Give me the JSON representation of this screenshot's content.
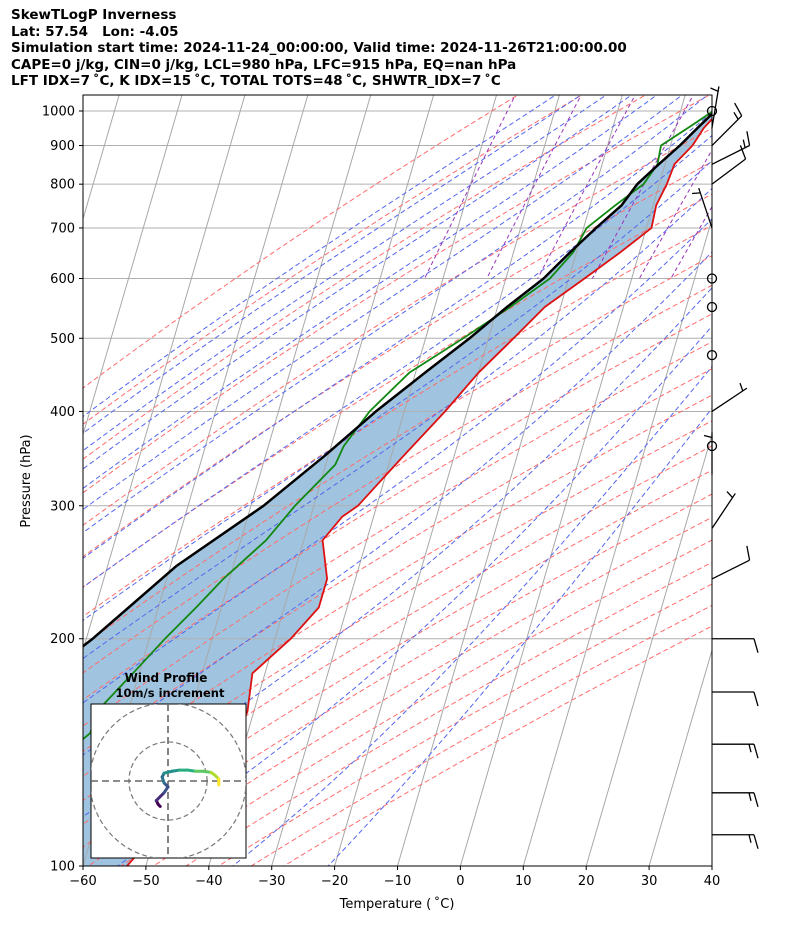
{
  "header": {
    "lines": [
      "SkewTLogP Inverness",
      "Lat: 57.54   Lon: -4.05",
      "Simulation start time: 2024-11-24_00:00:00, Valid time: 2024-11-26T21:00:00.00",
      "CAPE=0 j/kg, CIN=0 j/kg, LCL=980 hPa, LFC=915 hPa, EQ=nan hPa",
      "LFT IDX=7 ˚C, K IDX=15 ˚C, TOTAL TOTS=48 ˚C, SHWTR_IDX=7 ˚C"
    ]
  },
  "chart_data": {
    "type": "skewt-logp",
    "xlabel": "Temperature ( ˚C)",
    "ylabel": "Pressure (hPa)",
    "xlim": [
      -60,
      40
    ],
    "ylim": [
      1050,
      100
    ],
    "x_ticks": [
      -60,
      -50,
      -40,
      -30,
      -20,
      -10,
      0,
      10,
      20,
      30,
      40
    ],
    "x_tick_labels": [
      "−60",
      "−50",
      "−40",
      "−30",
      "−20",
      "−10",
      "0",
      "10",
      "20",
      "30",
      "40"
    ],
    "y_ticks": [
      1000,
      900,
      800,
      700,
      600,
      500,
      400,
      300,
      200,
      100
    ],
    "y_tick_labels": [
      "1000",
      "900",
      "800",
      "700",
      "600",
      "500",
      "400",
      "300",
      "200",
      "100"
    ],
    "isotherm_grid": true,
    "dry_adiabats": "dashed red",
    "moist_adiabats": "dashed blue",
    "mixing_ratio_lines": "dashed purple",
    "cape_shading": "#a0c4df",
    "series": [
      {
        "color": "#dd1111",
        "points": [
          [
            6.2,
            1000
          ],
          [
            4.5,
            950
          ],
          [
            3.5,
            900
          ],
          [
            1.5,
            850
          ],
          [
            1.2,
            800
          ],
          [
            0.5,
            750
          ],
          [
            0.8,
            700
          ],
          [
            -3,
            650
          ],
          [
            -7.5,
            600
          ],
          [
            -12.5,
            550
          ],
          [
            -16,
            500
          ],
          [
            -20,
            450
          ],
          [
            -23.5,
            400
          ],
          [
            -28,
            350
          ],
          [
            -33,
            300
          ],
          [
            -35,
            290
          ],
          [
            -37,
            270
          ],
          [
            -34.5,
            240
          ],
          [
            -34.5,
            220
          ],
          [
            -37.5,
            200
          ],
          [
            -42,
            180
          ],
          [
            -41,
            160
          ],
          [
            -42,
            150
          ],
          [
            -45,
            130
          ],
          [
            -53,
            100
          ]
        ]
      },
      {
        "color": "#118811",
        "points": [
          [
            5.2,
            1000
          ],
          [
            2,
            950
          ],
          [
            -1.5,
            900
          ],
          [
            -1.2,
            850
          ],
          [
            -2.5,
            800
          ],
          [
            -6,
            750
          ],
          [
            -9.5,
            700
          ],
          [
            -10.5,
            650
          ],
          [
            -13,
            600
          ],
          [
            -18,
            550
          ],
          [
            -24,
            500
          ],
          [
            -31,
            450
          ],
          [
            -35.5,
            400
          ],
          [
            -38,
            360
          ],
          [
            -38.5,
            340
          ],
          [
            -43,
            300
          ],
          [
            -46,
            270
          ],
          [
            -51,
            240
          ],
          [
            -54,
            220
          ],
          [
            -57.5,
            200
          ],
          [
            -61,
            180
          ],
          [
            -65,
            160
          ],
          [
            -65,
            150
          ],
          [
            -72,
            130
          ],
          [
            -75.5,
            100
          ]
        ]
      },
      {
        "color": "#000000",
        "points": [
          [
            5.5,
            1000
          ],
          [
            3.5,
            950
          ],
          [
            1.5,
            900
          ],
          [
            -1,
            850
          ],
          [
            -3.5,
            800
          ],
          [
            -5,
            750
          ],
          [
            -8,
            700
          ],
          [
            -11,
            650
          ],
          [
            -14,
            600
          ],
          [
            -18.5,
            550
          ],
          [
            -23,
            500
          ],
          [
            -28.5,
            450
          ],
          [
            -34.5,
            400
          ],
          [
            -40.5,
            350
          ],
          [
            -48,
            300
          ],
          [
            -59,
            250
          ],
          [
            -69,
            200
          ],
          [
            -84,
            150
          ],
          [
            -98,
            100
          ]
        ]
      }
    ],
    "wind_barbs": [
      {
        "p": 1000,
        "calm": true
      },
      {
        "p": 950,
        "u": 0.5,
        "v": 3,
        "full": 0,
        "half": 1
      },
      {
        "p": 900,
        "u": 3,
        "v": 3,
        "full": 1,
        "half": 1
      },
      {
        "p": 850,
        "u": 4,
        "v": 2,
        "full": 1,
        "half": 1
      },
      {
        "p": 800,
        "u": 4,
        "v": 3,
        "full": 1,
        "half": 0
      },
      {
        "p": 700,
        "u": -1,
        "v": 3,
        "full": 0,
        "half": 1
      },
      {
        "p": 600,
        "calm": true
      },
      {
        "p": 550,
        "calm": true
      },
      {
        "p": 475,
        "calm": true
      },
      {
        "p": 400,
        "u": 3,
        "v": 2,
        "full": 0,
        "half": 1
      },
      {
        "p": 360,
        "calm": true
      },
      {
        "p": 330,
        "u": 0,
        "v": 4,
        "full": 0,
        "half": 1
      },
      {
        "p": 280,
        "u": 2,
        "v": 3,
        "full": 0,
        "half": 1
      },
      {
        "p": 240,
        "u": 4,
        "v": 2,
        "full": 1,
        "half": 0
      },
      {
        "p": 200,
        "u": 5,
        "v": 0,
        "full": 1,
        "half": 0
      },
      {
        "p": 170,
        "u": 5,
        "v": 0,
        "full": 1,
        "half": 0
      },
      {
        "p": 145,
        "u": 5,
        "v": 0,
        "full": 1,
        "half": 1
      },
      {
        "p": 125,
        "u": 5,
        "v": 0,
        "full": 1,
        "half": 1
      },
      {
        "p": 110,
        "u": 5,
        "v": 0,
        "full": 1,
        "half": 1
      }
    ],
    "hodograph": {
      "title": "Wind Profile",
      "subtitle": "10m/s increment",
      "rings": [
        10,
        20,
        30
      ],
      "range": 24,
      "colormap": "viridis",
      "u": [
        -2,
        -2.5,
        -3,
        -2,
        -1,
        0,
        -1,
        -1.5,
        -1,
        1,
        3,
        5,
        7,
        9,
        11,
        12,
        13,
        13
      ],
      "v": [
        -6.5,
        -6,
        -5,
        -4,
        -3,
        -1.5,
        -0.5,
        1,
        2,
        2.5,
        2.8,
        2.8,
        2.5,
        2.5,
        2.2,
        1.5,
        0.5,
        -1
      ]
    }
  }
}
